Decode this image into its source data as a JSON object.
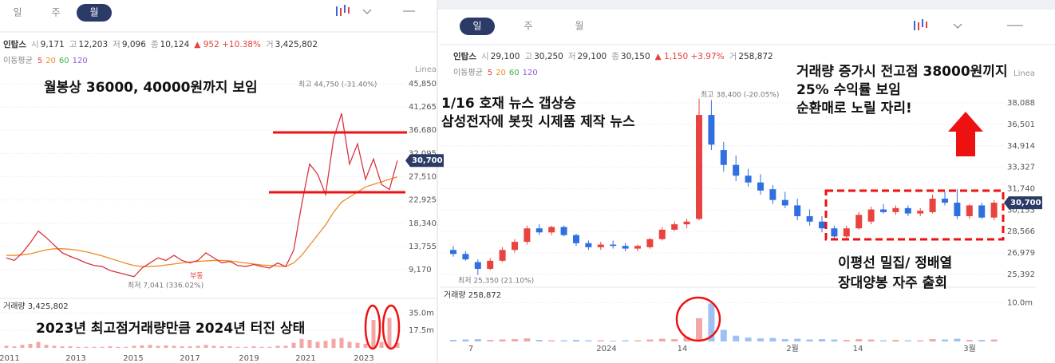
{
  "left": {
    "tabs": [
      "일",
      "주",
      "월"
    ],
    "info": [
      "인탑스",
      "시",
      "9,171",
      "고",
      "12,203",
      "저",
      "9,096",
      "종",
      "10,124",
      "▲ 952 +10.38%",
      "거",
      "3,425,802"
    ],
    "ma_title": "이동평균",
    "ma_periods": [
      "5",
      "20",
      "60",
      "120"
    ],
    "scale_label": "Linea",
    "ylim": [
      4930,
      47420
    ],
    "yticks": [
      {
        "value": 45850,
        "label": "45,850"
      },
      {
        "value": 41265,
        "label": "41,265"
      },
      {
        "value": 36680,
        "label": "36,680"
      },
      {
        "value": 32095,
        "label": "32,095"
      },
      {
        "value": 27510,
        "label": "27,510"
      },
      {
        "value": 22925,
        "label": "22,925"
      },
      {
        "value": 18340,
        "label": "18,340"
      },
      {
        "value": 13755,
        "label": "13,755"
      },
      {
        "value": 9170,
        "label": "9,170"
      }
    ],
    "xticks": [
      "2011",
      "2013",
      "2015",
      "2017",
      "2019",
      "2021",
      "2023"
    ],
    "max_label": "최고 44,750 (-31.40%)",
    "min_label": "최저 7,041 (336.02%)",
    "min_tag": "부동",
    "current": {
      "value": 30700,
      "label": "30,700"
    },
    "closes": [
      11500,
      11000,
      12500,
      14500,
      16800,
      15500,
      14000,
      12500,
      11800,
      11200,
      10500,
      10000,
      9800,
      9000,
      8600,
      8200,
      7800,
      9500,
      10500,
      11500,
      11000,
      12000,
      11000,
      10500,
      11000,
      12500,
      11500,
      10500,
      10800,
      10000,
      9800,
      10200,
      9800,
      9500,
      10500,
      9800,
      13000,
      22000,
      30000,
      28000,
      24000,
      35000,
      40000,
      30000,
      34000,
      27000,
      31000,
      26000,
      25000,
      30700
    ],
    "ma": [
      12000,
      12000,
      12100,
      12300,
      12700,
      13100,
      13300,
      13300,
      13200,
      13000,
      12700,
      12300,
      11900,
      11400,
      10900,
      10400,
      10000,
      9800,
      9800,
      9900,
      10100,
      10300,
      10500,
      10700,
      10800,
      10900,
      11000,
      11000,
      10900,
      10700,
      10500,
      10300,
      10100,
      10000,
      9900,
      9800,
      10500,
      12000,
      14000,
      16000,
      18000,
      20500,
      22500,
      23500,
      24500,
      25500,
      26000,
      26500,
      27000,
      27500
    ],
    "volume_title": "거래량 3,425,802",
    "vlim": [
      0,
      40
    ],
    "vticks": [
      {
        "value": 35,
        "label": "35.0m"
      },
      {
        "value": 17.5,
        "label": "17.5m"
      }
    ],
    "volumes": [
      2,
      1.5,
      3,
      4,
      6,
      3,
      2,
      1.5,
      1.5,
      1,
      1,
      1,
      1,
      1.5,
      1,
      1,
      2,
      2.5,
      3,
      2,
      2.5,
      2,
      1.5,
      1.5,
      2,
      3,
      2,
      1.5,
      1.5,
      1,
      1,
      1.5,
      1,
      1,
      2,
      2,
      5,
      9,
      8,
      6,
      7,
      9,
      10,
      6,
      5,
      4,
      28,
      6,
      30,
      5
    ],
    "annotations": [
      "월봉상 36000, 40000원까지 보임",
      "2023년 최고점거래량만큼 2024년 터진 상태"
    ]
  },
  "right": {
    "tabs": [
      "일",
      "주",
      "월"
    ],
    "info": [
      "인탑스",
      "시",
      "29,100",
      "고",
      "30,250",
      "저",
      "29,100",
      "종",
      "30,150",
      "▲ 1,150 +3.97%",
      "거",
      "258,872"
    ],
    "ma_title": "이동평균",
    "ma_periods": [
      "5",
      "20",
      "60",
      "120"
    ],
    "scale_label": "Linea",
    "ylim": [
      24440,
      39805
    ],
    "yticks": [
      {
        "value": 38088,
        "label": "38,088"
      },
      {
        "value": 36501,
        "label": "36,501"
      },
      {
        "value": 34914,
        "label": "34,914"
      },
      {
        "value": 33327,
        "label": "33,327"
      },
      {
        "value": 31740,
        "label": "31,740"
      },
      {
        "value": 30153,
        "label": "30,153"
      },
      {
        "value": 28566,
        "label": "28,566"
      },
      {
        "value": 26979,
        "label": "26,979"
      },
      {
        "value": 25392,
        "label": "25,392"
      }
    ],
    "xticks": [
      "7",
      "2024",
      "14",
      "2월",
      "14",
      "3월"
    ],
    "max_label": "최고 38,400 (-20.05%)",
    "min_label": "최저 25,350 (21.10%)",
    "current": {
      "value": 30700,
      "label": "30,700"
    },
    "candles": [
      [
        27200,
        27500,
        26700,
        26900
      ],
      [
        26900,
        27100,
        26400,
        26500
      ],
      [
        26300,
        26500,
        25350,
        25800
      ],
      [
        25800,
        26600,
        25700,
        26400
      ],
      [
        26400,
        27400,
        26300,
        27200
      ],
      [
        27200,
        28000,
        27000,
        27800
      ],
      [
        27800,
        29000,
        27600,
        28800
      ],
      [
        28800,
        29100,
        28300,
        28500
      ],
      [
        28500,
        29000,
        28300,
        28900
      ],
      [
        28900,
        29000,
        28200,
        28300
      ],
      [
        28300,
        28400,
        27500,
        27700
      ],
      [
        27700,
        27900,
        27200,
        27400
      ],
      [
        27400,
        27800,
        27200,
        27600
      ],
      [
        27600,
        27900,
        27300,
        27500
      ],
      [
        27500,
        27700,
        27100,
        27300
      ],
      [
        27300,
        27600,
        27100,
        27500
      ],
      [
        27400,
        28100,
        27300,
        28000
      ],
      [
        28000,
        28900,
        27900,
        28700
      ],
      [
        28700,
        29300,
        28600,
        29100
      ],
      [
        29100,
        29500,
        28800,
        29300
      ],
      [
        29500,
        38400,
        29400,
        37200
      ],
      [
        37200,
        38300,
        34600,
        35000
      ],
      [
        34600,
        35200,
        33000,
        33500
      ],
      [
        33500,
        34200,
        32300,
        32700
      ],
      [
        32700,
        33200,
        31900,
        32200
      ],
      [
        32200,
        32800,
        31300,
        31600
      ],
      [
        31700,
        32000,
        30600,
        30900
      ],
      [
        30900,
        31500,
        30300,
        30500
      ],
      [
        30500,
        31000,
        29400,
        29700
      ],
      [
        29700,
        30200,
        29000,
        29300
      ],
      [
        29300,
        29700,
        28500,
        28800
      ],
      [
        28800,
        29000,
        28000,
        28200
      ],
      [
        28200,
        29000,
        28000,
        28800
      ],
      [
        28800,
        30000,
        28700,
        29800
      ],
      [
        29300,
        30400,
        29100,
        30200
      ],
      [
        30200,
        30600,
        29900,
        30000
      ],
      [
        30000,
        30500,
        29800,
        30300
      ],
      [
        30300,
        30500,
        29700,
        29900
      ],
      [
        29900,
        30300,
        29700,
        30100
      ],
      [
        30000,
        31300,
        29900,
        31000
      ],
      [
        31000,
        31500,
        30500,
        30700
      ],
      [
        30700,
        31700,
        29500,
        29700
      ],
      [
        29700,
        30600,
        29500,
        30500
      ],
      [
        30500,
        30700,
        29500,
        29600
      ],
      [
        29600,
        30900,
        29400,
        30700
      ]
    ],
    "volume_title": "거래량 258,872",
    "vlim": [
      0,
      11.5
    ],
    "vticks": [
      {
        "value": 10,
        "label": "10.0m"
      }
    ],
    "volumes": [
      0.4,
      0.5,
      0.6,
      0.4,
      0.5,
      0.6,
      0.8,
      0.4,
      0.3,
      0.3,
      0.4,
      0.3,
      0.3,
      0.2,
      0.3,
      0.3,
      0.5,
      0.7,
      0.6,
      1.2,
      6.0,
      9.8,
      3.0,
      1.5,
      1.0,
      0.8,
      0.9,
      0.6,
      0.7,
      0.5,
      0.6,
      0.5,
      0.4,
      0.6,
      0.5,
      0.3,
      0.4,
      0.3,
      0.3,
      0.6,
      0.5,
      0.7,
      0.4,
      0.4,
      0.5
    ],
    "annotations": [
      "1/16 호재 뉴스 갭상승",
      "삼성전자에 봇핏 시제품 제작 뉴스",
      "거래량 증가시 전고점 38000원끼지",
      "25% 수익률 보임",
      "순환매로 노릴 자리!",
      "이평선 밀집/ 정배열",
      "장대양봉 자주 출회"
    ]
  }
}
